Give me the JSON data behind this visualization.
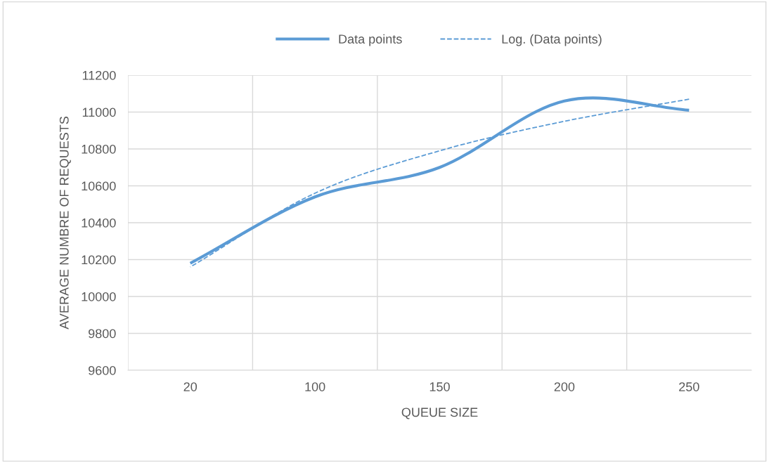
{
  "chart_data": {
    "type": "line",
    "xlabel": "QUEUE SIZE",
    "ylabel": "AVERAGE NUMBRE OF REQUESTS",
    "categories": [
      "20",
      "100",
      "150",
      "200",
      "250"
    ],
    "series": [
      {
        "name": "Data points",
        "color": "#5b9bd5",
        "values": [
          10180,
          10540,
          10700,
          11060,
          11010
        ],
        "line_style": "solid"
      },
      {
        "name": "Log. (Data points)",
        "color": "#5b9bd5",
        "values": [
          10160,
          10560,
          10790,
          10950,
          11070
        ],
        "line_style": "dashed"
      }
    ],
    "ylim": [
      9600,
      11200
    ],
    "yticks": [
      9600,
      9800,
      10000,
      10200,
      10400,
      10600,
      10800,
      11000,
      11200
    ],
    "grid": true,
    "legend": "top",
    "marker": "none"
  }
}
